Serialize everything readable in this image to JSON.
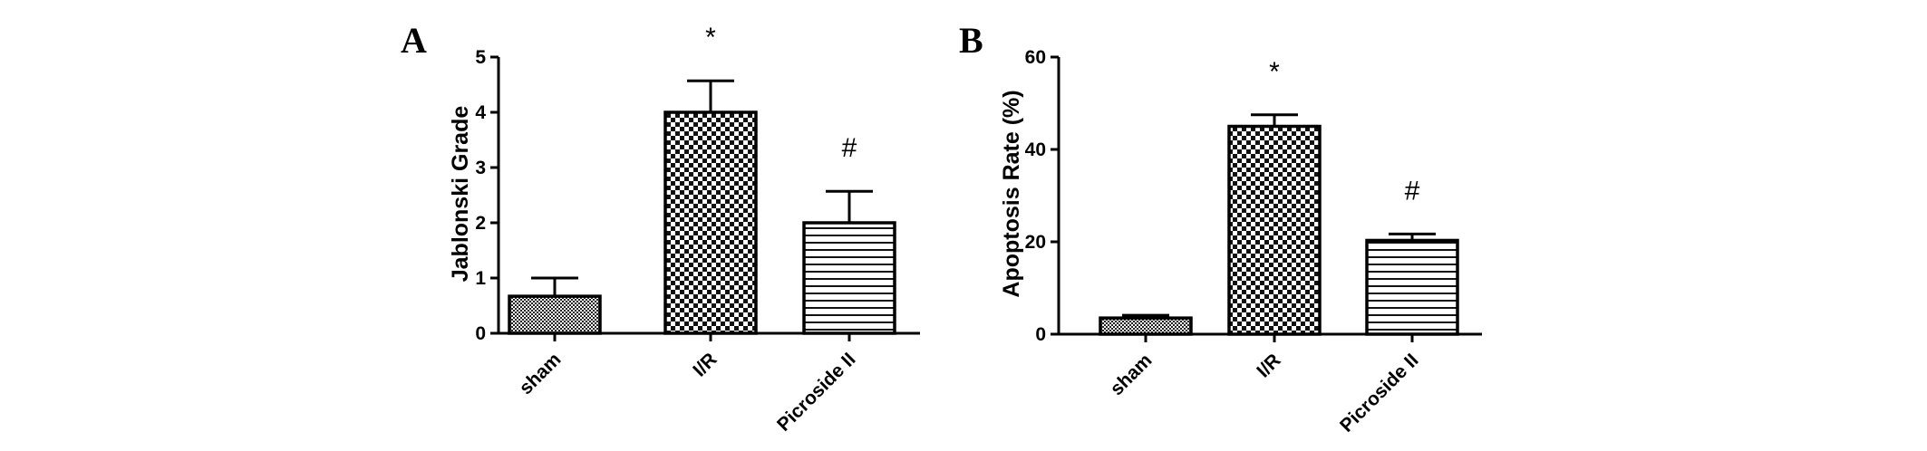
{
  "panels": [
    {
      "letter": "A"
    },
    {
      "letter": "B"
    }
  ],
  "chart_data": [
    {
      "type": "bar",
      "panel": "A",
      "title": "",
      "xlabel": "",
      "ylabel": "Jablonski Grade",
      "ylim": [
        0,
        5
      ],
      "yticks": [
        0,
        1,
        2,
        3,
        4,
        5
      ],
      "ytick_labels": [
        "0",
        "1",
        "2",
        "3",
        "4",
        "5"
      ],
      "categories": [
        "sham",
        "I/R",
        "Picroside II"
      ],
      "values": [
        0.67,
        4.0,
        2.0
      ],
      "errors": [
        0.33,
        0.57,
        0.57
      ],
      "annotations": [
        "",
        "*",
        "#"
      ],
      "fill_patterns": [
        "fine-checker",
        "checker",
        "horizontal-lines"
      ],
      "grid": false,
      "legend": "none"
    },
    {
      "type": "bar",
      "panel": "B",
      "title": "",
      "xlabel": "",
      "ylabel": "Apoptosis  Rate (%)",
      "ylim": [
        0,
        60
      ],
      "yticks": [
        0,
        20,
        40,
        60
      ],
      "ytick_labels": [
        "0",
        "20",
        "40",
        "60"
      ],
      "categories": [
        "sham",
        "I/R",
        "Picroside II"
      ],
      "values": [
        3.5,
        45.0,
        20.3
      ],
      "errors": [
        0.6,
        2.5,
        1.4
      ],
      "annotations": [
        "",
        "*",
        "#"
      ],
      "fill_patterns": [
        "fine-checker",
        "checker",
        "horizontal-lines"
      ],
      "grid": false,
      "legend": "none"
    }
  ]
}
